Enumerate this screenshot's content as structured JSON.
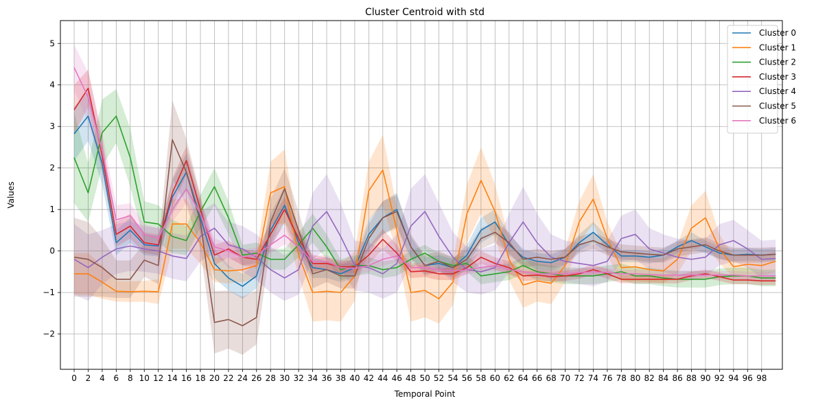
{
  "chart_data": {
    "type": "line",
    "title": "Cluster Centroid with std",
    "xlabel": "Temporal Point",
    "ylabel": "Values",
    "xlim": [
      -1.96,
      100.96
    ],
    "ylim": [
      -2.85,
      5.55
    ],
    "xticks": [
      0,
      2,
      4,
      6,
      8,
      10,
      12,
      14,
      16,
      18,
      20,
      22,
      24,
      26,
      28,
      30,
      32,
      34,
      36,
      38,
      40,
      42,
      44,
      46,
      48,
      50,
      52,
      54,
      56,
      58,
      60,
      62,
      64,
      66,
      68,
      70,
      72,
      74,
      76,
      78,
      80,
      82,
      84,
      86,
      88,
      90,
      92,
      94,
      96,
      98
    ],
    "yticks": [
      -2,
      -1,
      0,
      1,
      2,
      3,
      4,
      5
    ],
    "grid": true,
    "legend_position": "top-right",
    "series": [
      {
        "name": "Cluster 0",
        "color": "#1f77b4",
        "x": [
          0,
          2,
          4,
          6,
          8,
          10,
          12,
          14,
          16,
          18,
          20,
          22,
          24,
          26,
          28,
          30,
          32,
          34,
          36,
          38,
          40,
          42,
          44,
          46,
          48,
          50,
          52,
          54,
          56,
          58,
          60,
          62,
          64,
          66,
          68,
          70,
          72,
          74,
          76,
          78,
          80,
          82,
          84,
          86,
          88,
          90,
          92,
          94,
          96,
          98,
          100
        ],
        "values": [
          2.82,
          3.25,
          2.1,
          0.2,
          0.5,
          0.15,
          0.12,
          1.3,
          1.9,
          0.8,
          -0.3,
          -0.65,
          -0.85,
          -0.6,
          0.5,
          1.1,
          0.2,
          -0.4,
          -0.45,
          -0.55,
          -0.4,
          0.4,
          0.8,
          1.0,
          0.1,
          -0.35,
          -0.3,
          -0.4,
          -0.1,
          0.5,
          0.7,
          0.15,
          -0.15,
          -0.25,
          -0.28,
          -0.15,
          0.2,
          0.45,
          0.15,
          -0.12,
          -0.12,
          -0.15,
          -0.1,
          0.1,
          0.25,
          0.1,
          -0.05,
          -0.1,
          -0.08,
          -0.1,
          -0.08
        ],
        "std": [
          0.65,
          0.6,
          0.5,
          0.3,
          0.3,
          0.25,
          0.25,
          0.4,
          0.45,
          0.35,
          0.35,
          0.3,
          0.3,
          0.3,
          0.4,
          0.45,
          0.3,
          0.25,
          0.2,
          0.2,
          0.25,
          0.35,
          0.4,
          0.4,
          0.25,
          0.2,
          0.2,
          0.2,
          0.25,
          0.3,
          0.3,
          0.25,
          0.2,
          0.2,
          0.2,
          0.2,
          0.2,
          0.25,
          0.2,
          0.15,
          0.15,
          0.15,
          0.15,
          0.15,
          0.2,
          0.15,
          0.15,
          0.15,
          0.15,
          0.15,
          0.15
        ]
      },
      {
        "name": "Cluster 1",
        "color": "#ff7f0e",
        "x": [
          0,
          2,
          4,
          6,
          8,
          10,
          12,
          14,
          16,
          18,
          20,
          22,
          24,
          26,
          28,
          30,
          32,
          34,
          36,
          38,
          40,
          42,
          44,
          46,
          48,
          50,
          52,
          54,
          56,
          58,
          60,
          62,
          64,
          66,
          68,
          70,
          72,
          74,
          76,
          78,
          80,
          82,
          84,
          86,
          88,
          90,
          92,
          94,
          96,
          98,
          100
        ],
        "values": [
          -0.55,
          -0.55,
          -0.75,
          -0.97,
          -0.98,
          -0.97,
          -0.98,
          0.65,
          0.65,
          0.2,
          -0.45,
          -0.48,
          -0.45,
          -0.35,
          1.4,
          1.55,
          -0.1,
          -1.0,
          -0.97,
          -1.0,
          -0.6,
          1.45,
          1.95,
          0.5,
          -1.0,
          -0.95,
          -1.15,
          -0.75,
          0.9,
          1.7,
          0.95,
          -0.2,
          -0.82,
          -0.72,
          -0.78,
          -0.35,
          0.7,
          1.25,
          0.3,
          -0.4,
          -0.38,
          -0.45,
          -0.48,
          -0.2,
          0.55,
          0.8,
          0.05,
          -0.38,
          -0.32,
          -0.35,
          -0.25
        ],
        "std": [
          0.5,
          0.5,
          0.4,
          0.25,
          0.25,
          0.25,
          0.3,
          0.6,
          0.6,
          0.5,
          0.3,
          0.3,
          0.3,
          0.3,
          0.75,
          0.9,
          0.5,
          0.7,
          0.7,
          0.7,
          0.6,
          0.7,
          0.85,
          0.55,
          0.7,
          0.65,
          0.6,
          0.55,
          0.7,
          0.8,
          0.65,
          0.5,
          0.55,
          0.5,
          0.5,
          0.4,
          0.5,
          0.6,
          0.4,
          0.35,
          0.35,
          0.3,
          0.3,
          0.35,
          0.55,
          0.65,
          0.35,
          0.25,
          0.25,
          0.25,
          0.25
        ]
      },
      {
        "name": "Cluster 2",
        "color": "#2ca02c",
        "x": [
          0,
          2,
          4,
          6,
          8,
          10,
          12,
          14,
          16,
          18,
          20,
          22,
          24,
          26,
          28,
          30,
          32,
          34,
          36,
          38,
          40,
          42,
          44,
          46,
          48,
          50,
          52,
          54,
          56,
          58,
          60,
          62,
          64,
          66,
          68,
          70,
          72,
          74,
          76,
          78,
          80,
          82,
          84,
          86,
          88,
          90,
          92,
          94,
          96,
          98,
          100
        ],
        "values": [
          2.25,
          1.4,
          2.85,
          3.25,
          2.25,
          0.7,
          0.65,
          0.35,
          0.25,
          0.95,
          1.55,
          0.8,
          -0.1,
          -0.05,
          -0.2,
          -0.2,
          0.15,
          0.55,
          0.1,
          -0.45,
          -0.35,
          -0.35,
          -0.45,
          -0.4,
          -0.2,
          -0.05,
          -0.25,
          -0.35,
          -0.3,
          -0.6,
          -0.55,
          -0.5,
          -0.35,
          -0.5,
          -0.55,
          -0.6,
          -0.6,
          -0.6,
          -0.55,
          -0.5,
          -0.6,
          -0.6,
          -0.65,
          -0.68,
          -0.68,
          -0.68,
          -0.62,
          -0.6,
          -0.6,
          -0.65,
          -0.65
        ],
        "std": [
          1.1,
          0.7,
          0.8,
          0.65,
          0.7,
          0.5,
          0.45,
          0.4,
          0.35,
          0.4,
          0.45,
          0.4,
          0.25,
          0.25,
          0.25,
          0.25,
          0.3,
          0.35,
          0.3,
          0.25,
          0.25,
          0.2,
          0.2,
          0.2,
          0.2,
          0.2,
          0.2,
          0.2,
          0.2,
          0.2,
          0.2,
          0.2,
          0.2,
          0.2,
          0.2,
          0.2,
          0.2,
          0.2,
          0.2,
          0.2,
          0.2,
          0.2,
          0.2,
          0.2,
          0.2,
          0.2,
          0.2,
          0.2,
          0.2,
          0.2,
          0.2
        ]
      },
      {
        "name": "Cluster 3",
        "color": "#d62728",
        "x": [
          0,
          2,
          4,
          6,
          8,
          10,
          12,
          14,
          16,
          18,
          20,
          22,
          24,
          26,
          28,
          30,
          32,
          34,
          36,
          38,
          40,
          42,
          44,
          46,
          48,
          50,
          52,
          54,
          56,
          58,
          60,
          62,
          64,
          66,
          68,
          70,
          72,
          74,
          76,
          78,
          80,
          82,
          84,
          86,
          88,
          90,
          92,
          94,
          96,
          98,
          100
        ],
        "values": [
          3.4,
          3.92,
          2.3,
          0.4,
          0.6,
          0.2,
          0.15,
          1.4,
          2.18,
          1.0,
          -0.1,
          0.05,
          -0.15,
          -0.2,
          0.4,
          1.0,
          0.3,
          -0.3,
          -0.3,
          -0.38,
          -0.38,
          -0.1,
          0.28,
          -0.05,
          -0.5,
          -0.48,
          -0.55,
          -0.55,
          -0.4,
          -0.15,
          -0.3,
          -0.4,
          -0.6,
          -0.58,
          -0.62,
          -0.6,
          -0.55,
          -0.45,
          -0.55,
          -0.68,
          -0.68,
          -0.68,
          -0.68,
          -0.68,
          -0.6,
          -0.55,
          -0.62,
          -0.7,
          -0.7,
          -0.72,
          -0.72
        ],
        "std": [
          0.6,
          0.45,
          0.4,
          0.3,
          0.3,
          0.25,
          0.25,
          0.35,
          0.35,
          0.3,
          0.25,
          0.2,
          0.2,
          0.2,
          0.3,
          0.3,
          0.25,
          0.2,
          0.15,
          0.15,
          0.15,
          0.2,
          0.25,
          0.2,
          0.15,
          0.15,
          0.15,
          0.15,
          0.15,
          0.15,
          0.15,
          0.15,
          0.12,
          0.12,
          0.12,
          0.12,
          0.12,
          0.12,
          0.12,
          0.1,
          0.1,
          0.1,
          0.1,
          0.1,
          0.1,
          0.1,
          0.1,
          0.1,
          0.1,
          0.1,
          0.1
        ]
      },
      {
        "name": "Cluster 4",
        "color": "#9467bd",
        "x": [
          0,
          2,
          4,
          6,
          8,
          10,
          12,
          14,
          16,
          18,
          20,
          22,
          24,
          26,
          28,
          30,
          32,
          34,
          36,
          38,
          40,
          42,
          44,
          46,
          48,
          50,
          52,
          54,
          56,
          58,
          60,
          62,
          64,
          66,
          68,
          70,
          72,
          74,
          76,
          78,
          80,
          82,
          84,
          86,
          88,
          90,
          92,
          94,
          96,
          98,
          100
        ],
        "values": [
          -0.2,
          -0.4,
          -0.15,
          0.05,
          0.12,
          0.05,
          0.0,
          -0.12,
          -0.18,
          0.35,
          0.55,
          0.15,
          0.05,
          -0.15,
          -0.45,
          -0.65,
          -0.45,
          0.6,
          0.95,
          0.35,
          -0.35,
          -0.4,
          -0.55,
          -0.3,
          0.6,
          0.95,
          0.35,
          -0.15,
          -0.45,
          -0.5,
          -0.4,
          0.2,
          0.7,
          0.2,
          -0.15,
          -0.25,
          -0.3,
          -0.35,
          -0.25,
          0.3,
          0.4,
          0.05,
          -0.05,
          -0.15,
          -0.2,
          -0.15,
          0.15,
          0.25,
          0.05,
          -0.2,
          -0.18
        ],
        "std": [
          0.85,
          0.8,
          0.65,
          0.6,
          0.6,
          0.55,
          0.55,
          0.55,
          0.55,
          0.6,
          0.6,
          0.55,
          0.55,
          0.55,
          0.55,
          0.55,
          0.6,
          0.8,
          0.9,
          0.8,
          0.6,
          0.6,
          0.6,
          0.7,
          0.9,
          0.9,
          0.8,
          0.6,
          0.55,
          0.55,
          0.55,
          0.7,
          0.85,
          0.7,
          0.55,
          0.5,
          0.5,
          0.5,
          0.5,
          0.55,
          0.6,
          0.5,
          0.45,
          0.45,
          0.45,
          0.45,
          0.5,
          0.5,
          0.45,
          0.45,
          0.45
        ]
      },
      {
        "name": "Cluster 5",
        "color": "#8c564b",
        "x": [
          0,
          2,
          4,
          6,
          8,
          10,
          12,
          14,
          16,
          18,
          20,
          22,
          24,
          26,
          28,
          30,
          32,
          34,
          36,
          38,
          40,
          42,
          44,
          46,
          48,
          50,
          52,
          54,
          56,
          58,
          60,
          62,
          64,
          66,
          68,
          70,
          72,
          74,
          76,
          78,
          80,
          82,
          84,
          86,
          88,
          90,
          92,
          94,
          96,
          98,
          100
        ],
        "values": [
          -0.15,
          -0.2,
          -0.4,
          -0.68,
          -0.68,
          -0.22,
          -0.35,
          2.68,
          1.9,
          0.7,
          -1.72,
          -1.65,
          -1.8,
          -1.6,
          0.7,
          1.5,
          0.5,
          -0.55,
          -0.45,
          -0.6,
          -0.6,
          0.3,
          0.8,
          0.95,
          0.1,
          -0.35,
          -0.25,
          -0.4,
          -0.2,
          0.3,
          0.45,
          0.2,
          -0.2,
          -0.15,
          -0.2,
          -0.15,
          0.15,
          0.25,
          0.1,
          -0.02,
          -0.05,
          -0.08,
          -0.1,
          0.05,
          0.1,
          0.15,
          0.0,
          -0.1,
          -0.1,
          -0.1,
          -0.08
        ],
        "std": [
          0.95,
          0.9,
          0.7,
          0.45,
          0.45,
          0.4,
          0.45,
          0.95,
          0.8,
          0.65,
          0.75,
          0.7,
          0.7,
          0.65,
          0.55,
          0.5,
          0.45,
          0.35,
          0.3,
          0.3,
          0.3,
          0.35,
          0.4,
          0.4,
          0.3,
          0.25,
          0.25,
          0.25,
          0.25,
          0.25,
          0.25,
          0.25,
          0.2,
          0.2,
          0.2,
          0.2,
          0.2,
          0.2,
          0.2,
          0.18,
          0.18,
          0.18,
          0.18,
          0.18,
          0.18,
          0.18,
          0.18,
          0.18,
          0.18,
          0.18,
          0.18
        ]
      },
      {
        "name": "Cluster 6",
        "color": "#e377c2",
        "x": [
          0,
          2,
          4,
          6,
          8,
          10,
          12,
          14,
          16,
          18,
          20,
          22,
          24,
          26,
          28,
          30,
          32,
          34,
          36,
          38,
          40,
          42,
          44,
          46,
          48,
          50,
          52,
          54,
          56,
          58,
          60,
          62,
          64,
          66,
          68,
          70,
          72,
          74,
          76,
          78,
          80,
          82,
          84,
          86,
          88,
          90,
          92,
          94,
          96,
          98,
          100
        ],
        "values": [
          4.42,
          3.7,
          2.4,
          0.75,
          0.85,
          0.4,
          0.3,
          1.0,
          1.5,
          0.9,
          0.1,
          0.0,
          -0.15,
          -0.1,
          0.15,
          0.38,
          0.1,
          -0.25,
          -0.25,
          -0.4,
          -0.42,
          -0.35,
          -0.2,
          -0.12,
          -0.4,
          -0.4,
          -0.45,
          -0.48,
          -0.45,
          -0.4,
          -0.35,
          -0.45,
          -0.5,
          -0.55,
          -0.55,
          -0.55,
          -0.52,
          -0.5,
          -0.52,
          -0.55,
          -0.55,
          -0.57,
          -0.58,
          -0.58,
          -0.58,
          -0.58,
          -0.58,
          -0.58,
          -0.6,
          -0.6,
          -0.6
        ],
        "std": [
          0.55,
          0.6,
          0.45,
          0.35,
          0.3,
          0.25,
          0.25,
          0.3,
          0.35,
          0.3,
          0.2,
          0.18,
          0.18,
          0.18,
          0.2,
          0.22,
          0.18,
          0.15,
          0.15,
          0.15,
          0.15,
          0.15,
          0.15,
          0.15,
          0.12,
          0.12,
          0.12,
          0.12,
          0.12,
          0.12,
          0.12,
          0.12,
          0.1,
          0.1,
          0.1,
          0.1,
          0.1,
          0.1,
          0.1,
          0.1,
          0.1,
          0.1,
          0.1,
          0.1,
          0.1,
          0.1,
          0.1,
          0.1,
          0.1,
          0.1,
          0.1
        ]
      }
    ]
  }
}
